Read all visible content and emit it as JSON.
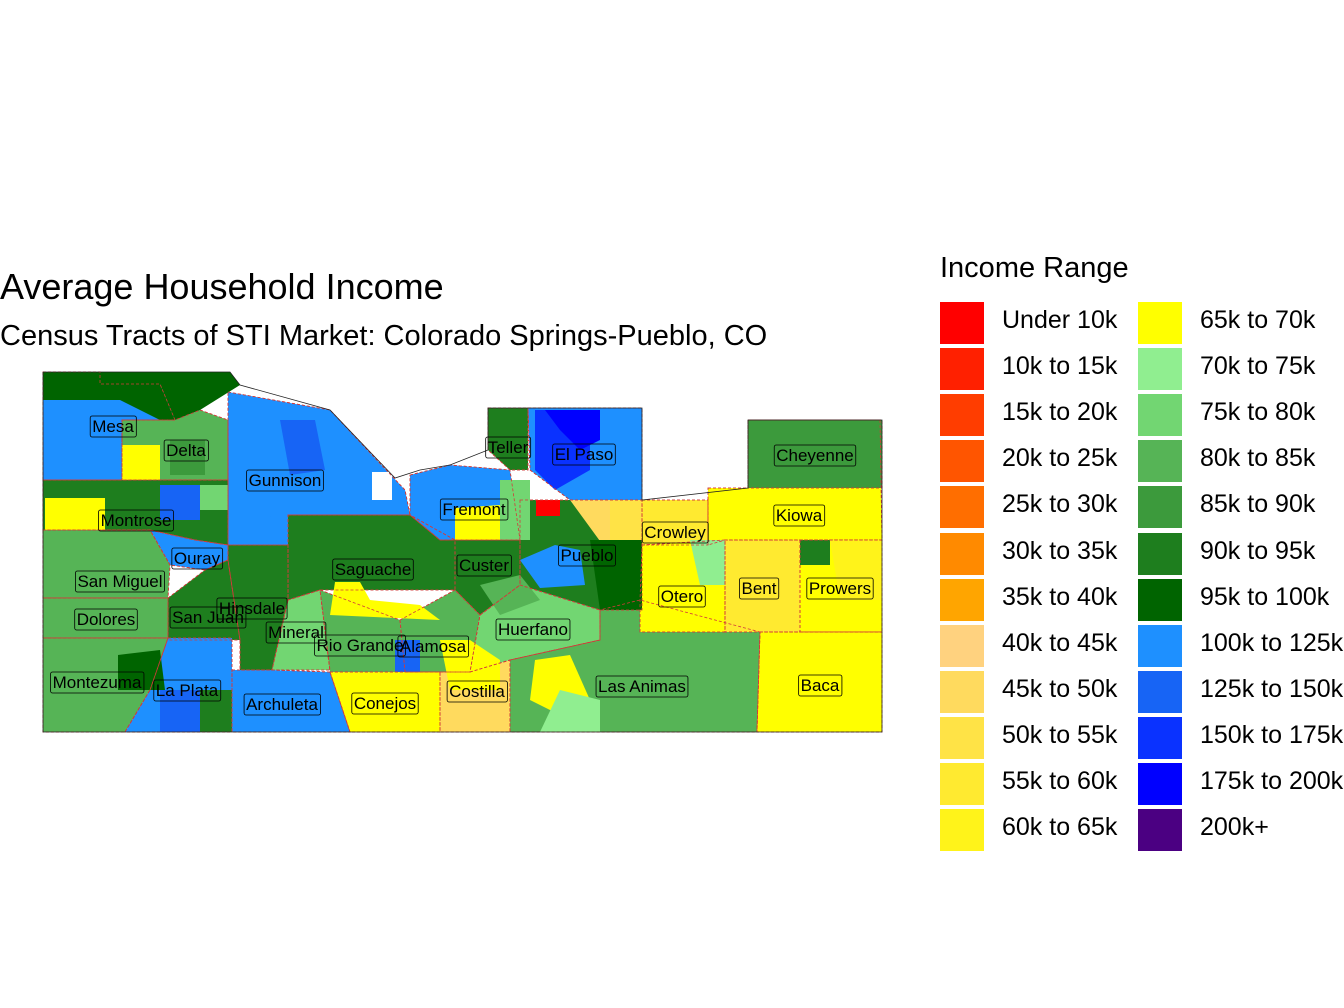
{
  "title": "Average Household Income",
  "subtitle": "Census Tracts of STI Market: Colorado Springs-Pueblo, CO",
  "legend": {
    "title": "Income Range",
    "items": [
      {
        "label": "Under 10k",
        "color": "#FF0000"
      },
      {
        "label": "10k to 15k",
        "color": "#FF2000"
      },
      {
        "label": "15k to 20k",
        "color": "#FF3D00"
      },
      {
        "label": "20k to 25k",
        "color": "#FF5500"
      },
      {
        "label": "25k to 30k",
        "color": "#FF6E00"
      },
      {
        "label": "30k to 35k",
        "color": "#FF8A00"
      },
      {
        "label": "35k to 40k",
        "color": "#FFA500"
      },
      {
        "label": "40k to 45k",
        "color": "#FFD27F"
      },
      {
        "label": "45k to 50k",
        "color": "#FFDA5E"
      },
      {
        "label": "50k to 55k",
        "color": "#FFE346"
      },
      {
        "label": "55k to 60k",
        "color": "#FFEA30"
      },
      {
        "label": "60k to 65k",
        "color": "#FFF31A"
      },
      {
        "label": "65k to 70k",
        "color": "#FFFF00"
      },
      {
        "label": "70k to 75k",
        "color": "#90EE90"
      },
      {
        "label": "75k to 80k",
        "color": "#72D672"
      },
      {
        "label": "80k to 85k",
        "color": "#56B456"
      },
      {
        "label": "85k to 90k",
        "color": "#3C9A3C"
      },
      {
        "label": "90k to 95k",
        "color": "#1E7E1E"
      },
      {
        "label": "95k to 100k",
        "color": "#006400"
      },
      {
        "label": "100k to 125k",
        "color": "#1E90FF"
      },
      {
        "label": "125k to 150k",
        "color": "#1764F5"
      },
      {
        "label": "150k to 175k",
        "color": "#0A32FF"
      },
      {
        "label": "175k to 200k",
        "color": "#0000FF"
      },
      {
        "label": "200k+",
        "color": "#4B0082"
      }
    ]
  },
  "counties": [
    {
      "name": "Mesa",
      "color": "#1E90FF"
    },
    {
      "name": "Delta",
      "color": "#56B456"
    },
    {
      "name": "Gunnison",
      "color": "#1E90FF"
    },
    {
      "name": "Montrose",
      "color": "#1E7E1E"
    },
    {
      "name": "Ouray",
      "color": "#1E90FF"
    },
    {
      "name": "San Miguel",
      "color": "#56B456"
    },
    {
      "name": "Dolores",
      "color": "#56B456"
    },
    {
      "name": "San Juan",
      "color": "#1E7E1E"
    },
    {
      "name": "Hinsdale",
      "color": "#1E7E1E"
    },
    {
      "name": "Mineral",
      "color": "#72D672"
    },
    {
      "name": "Saguache",
      "color": "#1E7E1E"
    },
    {
      "name": "Rio Grande",
      "color": "#56B456"
    },
    {
      "name": "Alamosa",
      "color": "#56B456"
    },
    {
      "name": "Montezuma",
      "color": "#56B456"
    },
    {
      "name": "La Plata",
      "color": "#1E90FF"
    },
    {
      "name": "Archuleta",
      "color": "#1E90FF"
    },
    {
      "name": "Conejos",
      "color": "#FFFF00"
    },
    {
      "name": "Costilla",
      "color": "#FFDA5E"
    },
    {
      "name": "Custer",
      "color": "#1E7E1E"
    },
    {
      "name": "Huerfano",
      "color": "#72D672"
    },
    {
      "name": "Las Animas",
      "color": "#56B456"
    },
    {
      "name": "Fremont",
      "color": "#1E90FF"
    },
    {
      "name": "Teller",
      "color": "#1E7E1E"
    },
    {
      "name": "El Paso",
      "color": "#1E90FF"
    },
    {
      "name": "Pueblo",
      "color": "#1E7E1E"
    },
    {
      "name": "Crowley",
      "color": "#FFEA30"
    },
    {
      "name": "Otero",
      "color": "#FFFF00"
    },
    {
      "name": "Bent",
      "color": "#FFEA30"
    },
    {
      "name": "Kiowa",
      "color": "#FFFF00"
    },
    {
      "name": "Prowers",
      "color": "#FFFF00"
    },
    {
      "name": "Cheyenne",
      "color": "#3C9A3C"
    },
    {
      "name": "Baca",
      "color": "#FFFF00"
    }
  ]
}
